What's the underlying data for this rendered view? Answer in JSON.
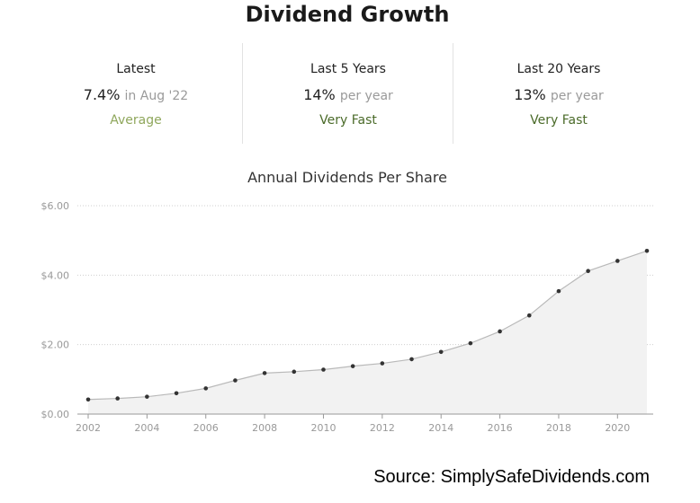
{
  "title": "Dividend Growth",
  "stats": [
    {
      "label": "Latest",
      "value": "7.4%",
      "sub": "in Aug '22",
      "rating": "Average"
    },
    {
      "label": "Last 5 Years",
      "value": "14%",
      "sub": "per year",
      "rating": "Very Fast"
    },
    {
      "label": "Last 20 Years",
      "value": "13%",
      "sub": "per year",
      "rating": "Very Fast"
    }
  ],
  "colors": {
    "average": "#8fa75c",
    "very_fast": "#4b6b2a",
    "line": "#b9b9b9",
    "area": "#f2f2f2",
    "point": "#333333"
  },
  "source": "Source: SimplySafeDividends.com",
  "chart_data": {
    "type": "area",
    "title": "Annual Dividends Per Share",
    "xlabel": "",
    "ylabel": "",
    "x": [
      2002,
      2003,
      2004,
      2005,
      2006,
      2007,
      2008,
      2009,
      2010,
      2011,
      2012,
      2013,
      2014,
      2015,
      2016,
      2017,
      2018,
      2019,
      2020,
      2021
    ],
    "values": [
      0.42,
      0.45,
      0.5,
      0.6,
      0.74,
      0.97,
      1.18,
      1.22,
      1.28,
      1.38,
      1.46,
      1.58,
      1.79,
      2.04,
      2.38,
      2.84,
      3.54,
      4.12,
      4.41,
      4.7
    ],
    "xticks": [
      "2002",
      "2004",
      "2006",
      "2008",
      "2010",
      "2012",
      "2014",
      "2016",
      "2018",
      "2020"
    ],
    "yticks": [
      "$0.00",
      "$2.00",
      "$4.00",
      "$6.00"
    ],
    "ylim": [
      0,
      6
    ],
    "grid": true
  }
}
